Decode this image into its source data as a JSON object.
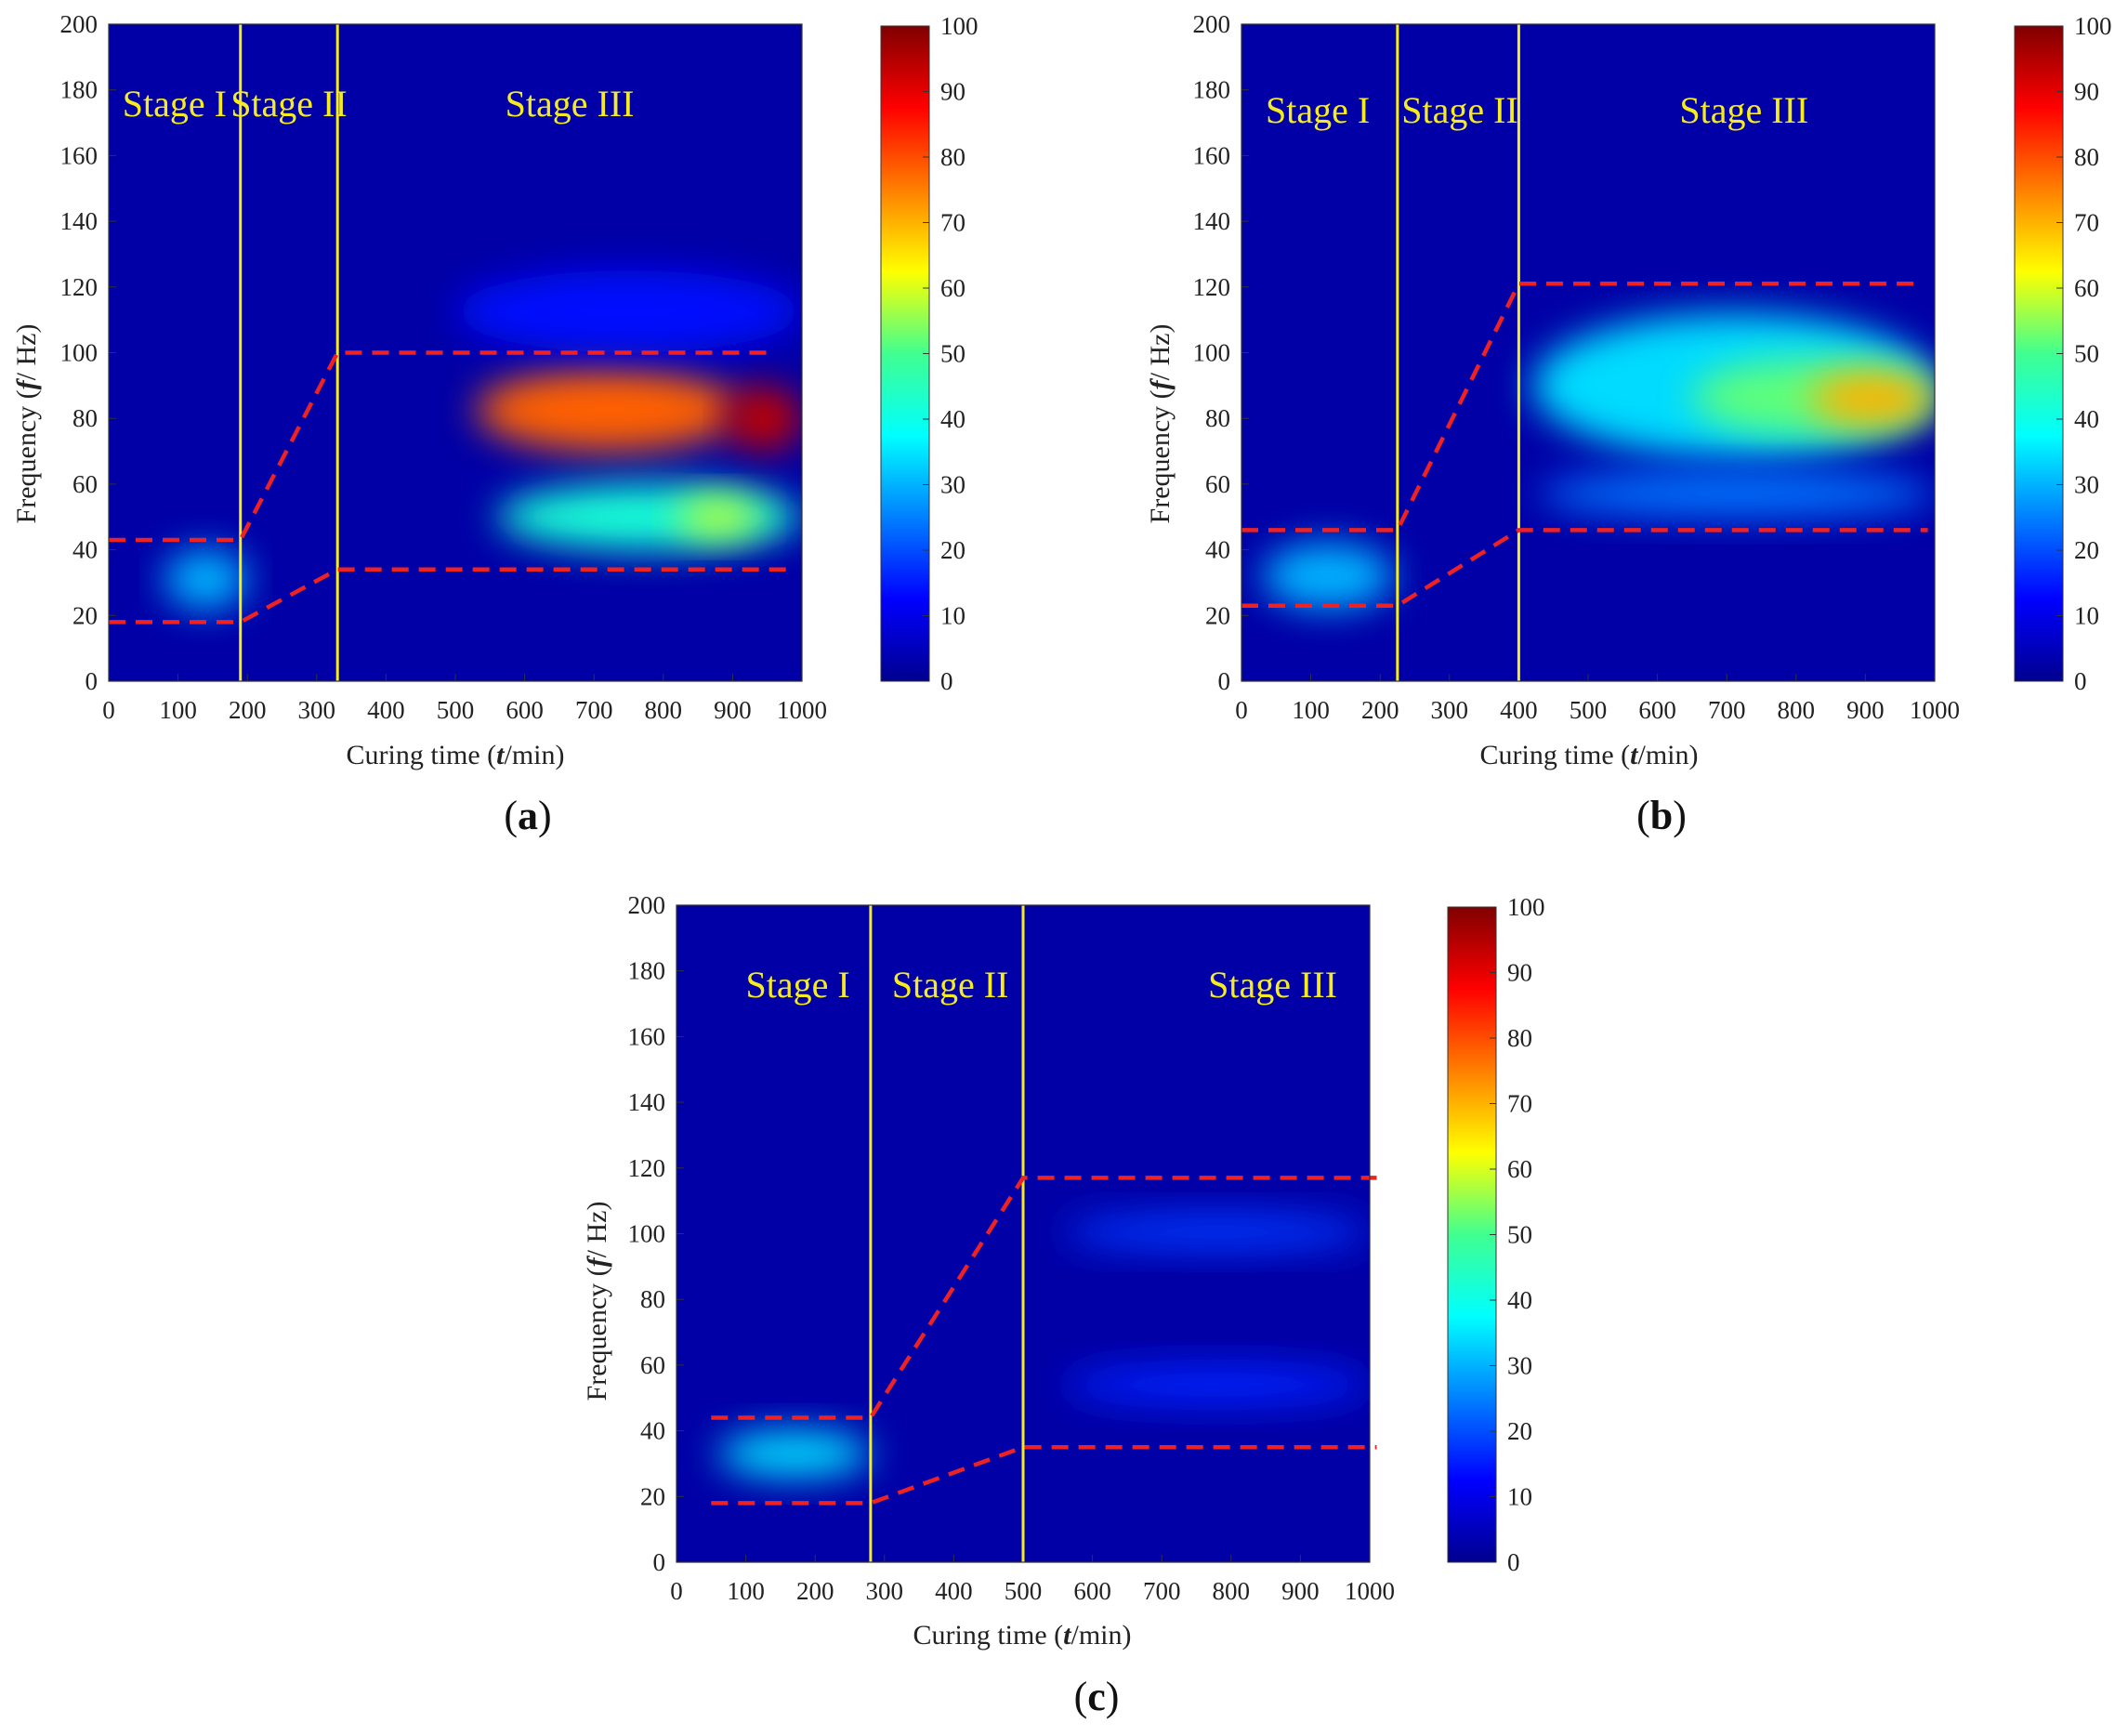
{
  "figure": {
    "colors": {
      "stage_line": "#f5eb1e",
      "boundary_line": "#ee2222",
      "background": "#0000a6"
    },
    "colorbar": {
      "min": 0,
      "max": 100,
      "ticks": [
        "100",
        "90",
        "80",
        "70",
        "60",
        "50",
        "40",
        "30",
        "20",
        "10",
        "0"
      ],
      "colormap": "jet"
    }
  },
  "chart_data": [
    {
      "type": "heatmap",
      "panel": "a",
      "panel_label": "a",
      "xlabel_prefix": "Curing time (",
      "xlabel_var": "t",
      "xlabel_suffix": "/min)",
      "ylabel_prefix": "Frequency (",
      "ylabel_var": "f",
      "ylabel_suffix": "/ Hz)",
      "xlim": [
        0,
        1000
      ],
      "ylim": [
        0,
        200
      ],
      "xticks": [
        "0",
        "100",
        "200",
        "300",
        "400",
        "500",
        "600",
        "700",
        "800",
        "900",
        "1000"
      ],
      "yticks": [
        "0",
        "20",
        "40",
        "60",
        "80",
        "100",
        "120",
        "140",
        "160",
        "180",
        "200"
      ],
      "stage_boundaries": [
        190,
        330
      ],
      "stage_labels": [
        {
          "text": "Stage I",
          "x": 95
        },
        {
          "text": "Stage II",
          "x": 260
        },
        {
          "text": "Stage III",
          "x": 665
        }
      ],
      "stage_label_y": 172,
      "upper_boundary": [
        [
          0,
          43
        ],
        [
          190,
          43
        ],
        [
          330,
          100
        ],
        [
          960,
          100
        ]
      ],
      "lower_boundary": [
        [
          0,
          18
        ],
        [
          190,
          18
        ],
        [
          330,
          34
        ],
        [
          990,
          34
        ]
      ],
      "hotspots": [
        {
          "t": [
            80,
            200
          ],
          "f": [
            22,
            40
          ],
          "level": 30
        },
        {
          "t": [
            530,
            910
          ],
          "f": [
            70,
            95
          ],
          "level": 78
        },
        {
          "t": [
            890,
            1000
          ],
          "f": [
            70,
            90
          ],
          "level": 94
        },
        {
          "t": [
            560,
            1000
          ],
          "f": [
            40,
            60
          ],
          "level": 42
        },
        {
          "t": [
            820,
            940
          ],
          "f": [
            44,
            56
          ],
          "level": 58
        },
        {
          "t": [
            500,
            1000
          ],
          "f": [
            100,
            125
          ],
          "level": 14
        }
      ]
    },
    {
      "type": "heatmap",
      "panel": "b",
      "panel_label": "b",
      "xlabel_prefix": "Curing time (",
      "xlabel_var": "t",
      "xlabel_suffix": "/min)",
      "ylabel_prefix": "Frequency (",
      "ylabel_var": "f",
      "ylabel_suffix": "/ Hz)",
      "xlim": [
        0,
        1000
      ],
      "ylim": [
        0,
        200
      ],
      "xticks": [
        "0",
        "100",
        "200",
        "300",
        "400",
        "500",
        "600",
        "700",
        "800",
        "900",
        "1000"
      ],
      "yticks": [
        "0",
        "20",
        "40",
        "60",
        "80",
        "100",
        "120",
        "140",
        "160",
        "180",
        "200"
      ],
      "stage_boundaries": [
        225,
        400
      ],
      "stage_labels": [
        {
          "text": "Stage I",
          "x": 110
        },
        {
          "text": "Stage II",
          "x": 315
        },
        {
          "text": "Stage III",
          "x": 725
        }
      ],
      "stage_label_y": 170,
      "upper_boundary": [
        [
          0,
          46
        ],
        [
          225,
          46
        ],
        [
          400,
          121
        ],
        [
          980,
          121
        ]
      ],
      "lower_boundary": [
        [
          0,
          23
        ],
        [
          225,
          23
        ],
        [
          400,
          46
        ],
        [
          990,
          46
        ]
      ],
      "hotspots": [
        {
          "t": [
            30,
            220
          ],
          "f": [
            22,
            42
          ],
          "level": 30
        },
        {
          "t": [
            420,
            1000
          ],
          "f": [
            68,
            112
          ],
          "level": 34
        },
        {
          "t": [
            650,
            1000
          ],
          "f": [
            75,
            98
          ],
          "level": 52
        },
        {
          "t": [
            820,
            1000
          ],
          "f": [
            78,
            94
          ],
          "level": 70
        },
        {
          "t": [
            430,
            1000
          ],
          "f": [
            50,
            64
          ],
          "level": 24
        }
      ]
    },
    {
      "type": "heatmap",
      "panel": "c",
      "panel_label": "c",
      "xlabel_prefix": "Curing time (",
      "xlabel_var": "t",
      "xlabel_suffix": "/min)",
      "ylabel_prefix": "Frequency (",
      "ylabel_var": "f",
      "ylabel_suffix": "/ Hz)",
      "xlim": [
        0,
        1000
      ],
      "ylim": [
        0,
        200
      ],
      "xticks": [
        "0",
        "100",
        "200",
        "300",
        "400",
        "500",
        "600",
        "700",
        "800",
        "900",
        "1000"
      ],
      "yticks": [
        "0",
        "20",
        "40",
        "60",
        "80",
        "100",
        "120",
        "140",
        "160",
        "180",
        "200"
      ],
      "stage_boundaries": [
        280,
        500
      ],
      "stage_labels": [
        {
          "text": "Stage I",
          "x": 175
        },
        {
          "text": "Stage II",
          "x": 395
        },
        {
          "text": "Stage III",
          "x": 860
        }
      ],
      "stage_label_y": 172,
      "upper_boundary": [
        [
          50,
          44
        ],
        [
          280,
          44
        ],
        [
          500,
          117
        ],
        [
          1010,
          117
        ]
      ],
      "lower_boundary": [
        [
          50,
          18
        ],
        [
          280,
          18
        ],
        [
          500,
          35
        ],
        [
          1010,
          35
        ]
      ],
      "hotspots": [
        {
          "t": [
            60,
            280
          ],
          "f": [
            26,
            40
          ],
          "level": 34
        },
        {
          "t": [
            560,
            1000
          ],
          "f": [
            95,
            106
          ],
          "level": 18
        },
        {
          "t": [
            560,
            1000
          ],
          "f": [
            48,
            60
          ],
          "level": 16
        }
      ]
    }
  ]
}
